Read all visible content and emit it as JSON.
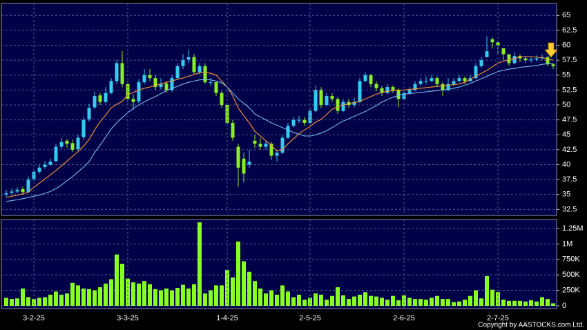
{
  "chart_data": [
    {
      "type": "candlestick",
      "open": [
        35.0,
        35.3,
        35.5,
        35.9,
        35.4,
        37.6,
        38.8,
        39.6,
        40,
        40.6,
        43,
        44,
        43.6,
        42.6,
        44.6,
        47.6,
        49.6,
        51.6,
        50.5,
        52,
        54,
        57,
        53.5,
        51,
        50.6,
        53.8,
        55,
        54.5,
        53,
        53.6,
        52.5,
        54.5,
        56.5,
        57.6,
        58,
        55.5,
        56.5,
        53.8,
        53.8,
        52,
        50,
        47,
        43,
        41,
        40,
        44,
        43.5,
        43,
        43.5,
        41.5,
        42,
        44.5,
        46.5,
        47.5,
        47.5,
        47,
        49,
        52.5,
        50,
        51.5,
        51,
        49,
        50.5,
        50,
        50.5,
        54,
        55,
        53.5,
        52.8,
        52,
        53,
        52.5,
        51,
        52,
        52.5,
        53.5,
        54,
        54,
        54.5,
        53.5,
        52.5,
        53.5,
        54,
        54.5,
        54,
        54.5,
        56.5,
        58,
        61,
        60.5,
        59.5,
        58.5,
        57,
        58.2,
        57.8,
        57.5,
        57.6,
        58,
        58,
        56.8
      ],
      "high": [
        35.8,
        36,
        36.2,
        36.3,
        38,
        39.3,
        40,
        40.6,
        41,
        43.5,
        44.5,
        44.3,
        44.2,
        45,
        48,
        50.2,
        52.2,
        52,
        53,
        54.5,
        57.5,
        59,
        54,
        51.8,
        54.3,
        56,
        56,
        55,
        54.5,
        54,
        55,
        57,
        58.5,
        59.3,
        58.5,
        57,
        57,
        54.5,
        54,
        52.3,
        50.2,
        47.5,
        43.5,
        42,
        42.5,
        45,
        44.5,
        44,
        43.8,
        42.5,
        45,
        47,
        48,
        48.2,
        48,
        49.5,
        53.2,
        53,
        52,
        52,
        51.3,
        51,
        51,
        51.2,
        54.5,
        55.5,
        55.2,
        54,
        53.2,
        53.5,
        53.3,
        52.8,
        52.5,
        53,
        54,
        54.5,
        54.8,
        55,
        54.8,
        53.8,
        54.5,
        54.5,
        55,
        54.8,
        55,
        57,
        58,
        61.5,
        61.3,
        60.8,
        59.5,
        58.5,
        58.8,
        58.5,
        58.2,
        58,
        58.3,
        58.5,
        58.2,
        57
      ],
      "low": [
        34.6,
        35,
        35.2,
        35,
        35.2,
        37.3,
        38.5,
        39.3,
        39.8,
        40.4,
        42.6,
        42.8,
        42.1,
        42.3,
        44.2,
        47.2,
        49.3,
        50,
        50.2,
        51.8,
        53.5,
        53,
        50.5,
        49.2,
        50.3,
        53.5,
        54,
        52.5,
        52.6,
        52,
        52.2,
        54.2,
        56,
        57,
        55.2,
        55,
        53.5,
        53.2,
        51.5,
        49.5,
        46.5,
        44,
        36.3,
        37,
        39.5,
        42.8,
        42.5,
        42.5,
        40.8,
        40.5,
        41.8,
        44.3,
        46.2,
        47,
        46.5,
        46.8,
        48.8,
        49.5,
        49.8,
        50.5,
        48.5,
        48.8,
        49.5,
        49.6,
        50.3,
        53.8,
        53,
        52.3,
        51.5,
        51.8,
        52,
        49.6,
        50.8,
        51.8,
        52.3,
        53.2,
        53.5,
        53.8,
        53,
        51.5,
        52.3,
        53.2,
        53.8,
        53.5,
        53.8,
        54.3,
        56.2,
        58,
        59.5,
        58.5,
        57.5,
        56.5,
        56.8,
        57.2,
        57,
        57.1,
        57.3,
        57.5,
        56.5,
        56
      ],
      "close": [
        35.2,
        35.5,
        35.8,
        35.4,
        37.5,
        38.8,
        39.5,
        40,
        40.5,
        43,
        43.8,
        43.5,
        42.5,
        44.5,
        47.5,
        49.5,
        51.5,
        50.5,
        52,
        54,
        57,
        53.5,
        51,
        50.5,
        53.8,
        55,
        54.5,
        53,
        53.5,
        52.5,
        54.5,
        56.5,
        57.5,
        58,
        55.5,
        56.5,
        53.8,
        53.8,
        52,
        50,
        47,
        44.5,
        39.5,
        38.5,
        40.5,
        43.5,
        43,
        43.5,
        41.5,
        42,
        44.5,
        46.5,
        47.5,
        47.5,
        47,
        49,
        52.5,
        50,
        51.5,
        51,
        49,
        50.5,
        50,
        50.5,
        54,
        55,
        53.5,
        52.8,
        52,
        53,
        52.5,
        51,
        52,
        52.5,
        53.5,
        54,
        54,
        54.5,
        53.5,
        52.5,
        53.5,
        54,
        54.5,
        54,
        54.5,
        56.5,
        57.5,
        59,
        60.5,
        60,
        58.5,
        57,
        58.2,
        57.8,
        57.5,
        57.6,
        57.8,
        58,
        56.8,
        56.5
      ],
      "up_color": "#33ccee",
      "down_color": "#88ee22",
      "series": [
        {
          "color": "#ff9933",
          "values": [
            34.5,
            34.7,
            34.9,
            35.1,
            35.4,
            36.2,
            36.9,
            37.6,
            38.3,
            39.0,
            39.8,
            40.6,
            41.4,
            42.2,
            43.1,
            44.2,
            45.8,
            47.2,
            48.3,
            49.5,
            50.1,
            50.6,
            51.7,
            52.1,
            52.5,
            52.8,
            53.0,
            53.3,
            53.5,
            53.8,
            54.0,
            54.3,
            54.5,
            54.8,
            55.1,
            55.4,
            55.5,
            55.3,
            55.0,
            54.0,
            53.0,
            51.5,
            49.5,
            48.2,
            47.0,
            45.6,
            44.8,
            44.0,
            43.2,
            42.3,
            42.5,
            43.5,
            44.3,
            45.2,
            45.8,
            46.4,
            47.1,
            47.6,
            48.4,
            49.3,
            49.7,
            50.0,
            50.2,
            50.4,
            50.6,
            51.0,
            51.4,
            51.8,
            52.1,
            52.3,
            52.4,
            52.5,
            52.5,
            52.6,
            52.7,
            52.8,
            52.9,
            53.0,
            53.1,
            53.2,
            53.3,
            53.4,
            53.5,
            53.8,
            54.3,
            54.8,
            55.3,
            55.8,
            56.4,
            57.0,
            57.3,
            57.6,
            57.8,
            58.0,
            58.1,
            58.1,
            58.0,
            57.9,
            57.7,
            57.5
          ]
        },
        {
          "color": "#77bbee",
          "values": [
            33.8,
            34.0,
            34.1,
            34.3,
            34.5,
            34.7,
            34.9,
            35.2,
            35.5,
            36.0,
            36.6,
            37.3,
            38.0,
            38.8,
            39.6,
            40.5,
            42.0,
            43.3,
            44.6,
            46.0,
            47.0,
            47.9,
            48.7,
            49.4,
            50.0,
            50.5,
            51.0,
            51.4,
            51.9,
            52.4,
            52.8,
            53.1,
            53.5,
            53.8,
            54.0,
            54.2,
            54.3,
            54.2,
            54.0,
            53.7,
            53.0,
            52.0,
            51.0,
            50.3,
            49.5,
            48.5,
            48.0,
            47.5,
            47.0,
            46.6,
            46.2,
            45.8,
            45.4,
            45.1,
            44.8,
            44.8,
            45.0,
            45.3,
            45.7,
            46.2,
            46.8,
            47.3,
            47.7,
            48.1,
            48.5,
            48.9,
            49.4,
            49.9,
            50.5,
            50.9,
            51.3,
            51.6,
            51.8,
            51.9,
            52.0,
            52.1,
            52.2,
            52.3,
            52.4,
            52.5,
            52.6,
            52.8,
            53.0,
            53.3,
            53.6,
            54.0,
            54.4,
            54.8,
            55.2,
            55.6,
            55.8,
            56.0,
            56.1,
            56.3,
            56.4,
            56.5,
            56.6,
            56.8,
            56.9,
            57.0
          ]
        }
      ],
      "ylim": [
        31.5,
        67
      ],
      "yticks": [
        32.5,
        35,
        37.5,
        40,
        42.5,
        45,
        47.5,
        50,
        52.5,
        55,
        57.5,
        60,
        62.5,
        65
      ],
      "grid": true
    },
    {
      "type": "bar",
      "categories": [
        null,
        null,
        null,
        null,
        null,
        "3-2-25",
        null,
        null,
        null,
        null,
        null,
        null,
        null,
        null,
        null,
        null,
        null,
        null,
        null,
        null,
        null,
        null,
        "3-3-25",
        null,
        null,
        null,
        null,
        null,
        null,
        null,
        null,
        null,
        null,
        null,
        null,
        null,
        null,
        null,
        null,
        null,
        "1-4-25",
        null,
        null,
        null,
        null,
        null,
        null,
        null,
        null,
        null,
        null,
        null,
        null,
        null,
        null,
        "2-5-25",
        null,
        null,
        null,
        null,
        null,
        null,
        null,
        null,
        null,
        null,
        null,
        null,
        null,
        null,
        null,
        null,
        "2-6-25",
        null,
        null,
        null,
        null,
        null,
        null,
        null,
        null,
        null,
        null,
        null,
        null,
        null,
        null,
        null,
        null,
        "2-7-25",
        null,
        null,
        null,
        null,
        null,
        null,
        null,
        null,
        null,
        null
      ],
      "values": [
        130000,
        110000,
        120000,
        280000,
        140000,
        110000,
        130000,
        140000,
        180000,
        230000,
        180000,
        200000,
        370000,
        330000,
        280000,
        270000,
        250000,
        300000,
        360000,
        430000,
        830000,
        680000,
        440000,
        380000,
        360000,
        400000,
        350000,
        270000,
        250000,
        280000,
        250000,
        290000,
        340000,
        280000,
        350000,
        1350000,
        200000,
        250000,
        330000,
        330000,
        580000,
        460000,
        1040000,
        720000,
        550000,
        400000,
        280000,
        200000,
        250000,
        180000,
        330000,
        230000,
        140000,
        180000,
        100000,
        130000,
        200000,
        180000,
        100000,
        160000,
        300000,
        170000,
        110000,
        150000,
        180000,
        220000,
        160000,
        150000,
        130000,
        100000,
        160000,
        90000,
        170000,
        130000,
        110000,
        110000,
        100000,
        130000,
        160000,
        110000,
        110000,
        60000,
        70000,
        100000,
        160000,
        250000,
        120000,
        480000,
        260000,
        220000,
        100000,
        80000,
        80000,
        80000,
        70000,
        90000,
        70000,
        140000,
        110000,
        40000
      ],
      "color": "#88ff22",
      "ylim": [
        -45000,
        1395000
      ],
      "yticks": [
        0,
        {
          "value": 250000,
          "label": "250K"
        },
        {
          "value": 500000,
          "label": "500K"
        },
        {
          "value": 750000,
          "label": "750K"
        },
        {
          "value": 1000000,
          "label": "1M"
        },
        {
          "value": 1250000,
          "label": "1.25M"
        }
      ],
      "grid": true
    }
  ],
  "copyright": "Copyright by AASTOCKS.com Ltd."
}
